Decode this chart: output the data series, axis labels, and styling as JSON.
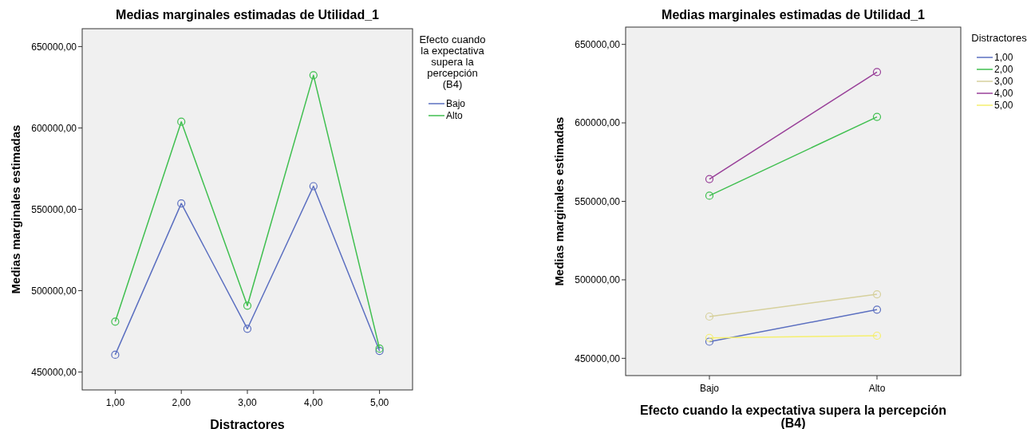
{
  "chart_data": [
    {
      "type": "line",
      "title": "Medias marginales estimadas de Utilidad_1",
      "xlabel": "Distractores",
      "ylabel": "Medias marginales estimadas",
      "legend_title": "Efecto cuando la expectativa supera la percepción (B4)",
      "categories": [
        "1,00",
        "2,00",
        "3,00",
        "4,00",
        "5,00"
      ],
      "series": [
        {
          "name": "Bajo",
          "color": "#5b6fc0",
          "values": [
            460600,
            553600,
            476600,
            564200,
            463000
          ]
        },
        {
          "name": "Alto",
          "color": "#3fbf4f",
          "values": [
            481000,
            603800,
            490800,
            632400,
            464400
          ]
        }
      ],
      "ylim": [
        439000,
        661000
      ],
      "yticks": [
        {
          "value": 450000,
          "label": "450000,00"
        },
        {
          "value": 500000,
          "label": "500000,00"
        },
        {
          "value": 550000,
          "label": "550000,00"
        },
        {
          "value": 600000,
          "label": "600000,00"
        },
        {
          "value": 650000,
          "label": "650000,00"
        }
      ],
      "grid": false,
      "legend": "right",
      "marker": "circle",
      "line_style": "solid"
    },
    {
      "type": "line",
      "title": "Medias marginales estimadas de Utilidad_1",
      "xlabel": "Efecto cuando la expectativa supera la percepción (B4)",
      "ylabel": "Medias marginales estimadas",
      "legend_title": "Distractores",
      "categories": [
        "Bajo",
        "Alto"
      ],
      "series": [
        {
          "name": "1,00",
          "color": "#5b6fc0",
          "values": [
            460600,
            481000
          ]
        },
        {
          "name": "2,00",
          "color": "#3fbf4f",
          "values": [
            553600,
            603800
          ]
        },
        {
          "name": "3,00",
          "color": "#d6d09c",
          "values": [
            476600,
            490800
          ]
        },
        {
          "name": "4,00",
          "color": "#983f98",
          "values": [
            564200,
            632400
          ]
        },
        {
          "name": "5,00",
          "color": "#f5ef6e",
          "values": [
            463000,
            464400
          ]
        }
      ],
      "ylim": [
        439000,
        661000
      ],
      "yticks": [
        {
          "value": 450000,
          "label": "450000,00"
        },
        {
          "value": 500000,
          "label": "500000,00"
        },
        {
          "value": 550000,
          "label": "550000,00"
        },
        {
          "value": 600000,
          "label": "600000,00"
        },
        {
          "value": 650000,
          "label": "650000,00"
        }
      ],
      "grid": false,
      "legend": "right",
      "marker": "circle",
      "line_style": "solid"
    }
  ]
}
